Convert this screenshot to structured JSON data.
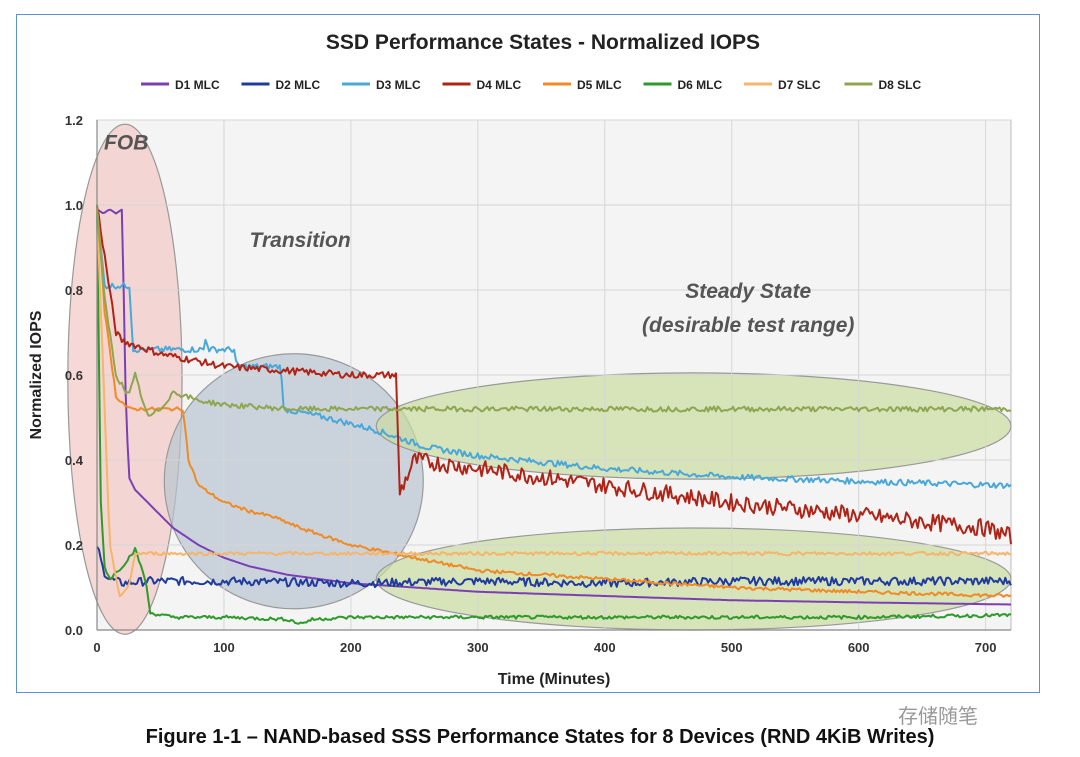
{
  "caption": "Figure 1-1 – NAND-based SSS Performance States for 8 Devices (RND 4KiB Writes)",
  "watermark": "存储随笔",
  "chart_data": {
    "type": "line",
    "title": "SSD Performance States - Normalized IOPS",
    "xlabel": "Time (Minutes)",
    "ylabel": "Normalized IOPS",
    "xlim": [
      0,
      720
    ],
    "ylim": [
      0,
      1.2
    ],
    "xticks": [
      0,
      100,
      200,
      300,
      400,
      500,
      600,
      700
    ],
    "yticks": [
      0.0,
      0.2,
      0.4,
      0.6,
      0.8,
      1.0,
      1.2
    ],
    "ytick_labels": [
      "0.0",
      "0.2",
      "0.4",
      "0.6",
      "0.8",
      "1.0",
      "1.2"
    ],
    "grid": true,
    "legend_position": "top",
    "annotations": [
      {
        "text": "FOB"
      },
      {
        "text": "Transition"
      },
      {
        "text": "Steady State"
      },
      {
        "text": "(desirable test range)"
      }
    ],
    "regions": [
      {
        "name": "fob-region",
        "cx": 22,
        "cy": 0.59,
        "rx": 45,
        "ry": 0.6,
        "color": "#f2c9c4"
      },
      {
        "name": "transition-region",
        "cx": 155,
        "cy": 0.35,
        "rx": 102,
        "ry": 0.3,
        "color": "#b8c4d0"
      },
      {
        "name": "steady-top-region",
        "cx": 470,
        "cy": 0.48,
        "rx": 250,
        "ry": 0.125,
        "color": "#cadba0"
      },
      {
        "name": "steady-bottom-region",
        "cx": 470,
        "cy": 0.12,
        "rx": 250,
        "ry": 0.12,
        "color": "#cadba0"
      }
    ],
    "series": [
      {
        "name": "D1 MLC",
        "color": "#7b3fb5",
        "points": [
          [
            0,
            0.99
          ],
          [
            5,
            0.98
          ],
          [
            10,
            0.99
          ],
          [
            15,
            0.98
          ],
          [
            20,
            0.99
          ],
          [
            22,
            0.6
          ],
          [
            25,
            0.36
          ],
          [
            30,
            0.33
          ],
          [
            40,
            0.3
          ],
          [
            60,
            0.24
          ],
          [
            80,
            0.2
          ],
          [
            100,
            0.17
          ],
          [
            120,
            0.15
          ],
          [
            150,
            0.13
          ],
          [
            200,
            0.11
          ],
          [
            250,
            0.1
          ],
          [
            300,
            0.09
          ],
          [
            400,
            0.08
          ],
          [
            500,
            0.07
          ],
          [
            600,
            0.065
          ],
          [
            720,
            0.06
          ]
        ]
      },
      {
        "name": "D2 MLC",
        "color": "#1f3b9e",
        "noise": 0.01,
        "points": [
          [
            0,
            0.2
          ],
          [
            5,
            0.14
          ],
          [
            10,
            0.12
          ],
          [
            20,
            0.11
          ],
          [
            40,
            0.115
          ],
          [
            100,
            0.115
          ],
          [
            200,
            0.11
          ],
          [
            300,
            0.115
          ],
          [
            400,
            0.11
          ],
          [
            500,
            0.115
          ],
          [
            600,
            0.115
          ],
          [
            720,
            0.115
          ]
        ]
      },
      {
        "name": "D3 MLC",
        "color": "#4aa8d8",
        "noise": 0.007,
        "points": [
          [
            0,
            1.0
          ],
          [
            3,
            0.9
          ],
          [
            6,
            0.81
          ],
          [
            26,
            0.81
          ],
          [
            28,
            0.66
          ],
          [
            40,
            0.66
          ],
          [
            84,
            0.66
          ],
          [
            86,
            0.69
          ],
          [
            88,
            0.66
          ],
          [
            108,
            0.66
          ],
          [
            110,
            0.62
          ],
          [
            145,
            0.62
          ],
          [
            147,
            0.52
          ],
          [
            180,
            0.5
          ],
          [
            220,
            0.47
          ],
          [
            260,
            0.43
          ],
          [
            300,
            0.41
          ],
          [
            400,
            0.38
          ],
          [
            500,
            0.36
          ],
          [
            600,
            0.35
          ],
          [
            720,
            0.34
          ]
        ]
      },
      {
        "name": "D4 MLC",
        "color": "#b02418",
        "noise": 0.008,
        "points": [
          [
            0,
            1.0
          ],
          [
            5,
            0.9
          ],
          [
            15,
            0.7
          ],
          [
            20,
            0.68
          ],
          [
            50,
            0.65
          ],
          [
            100,
            0.62
          ],
          [
            150,
            0.61
          ],
          [
            200,
            0.6
          ],
          [
            236,
            0.6
          ],
          [
            238,
            0.32
          ],
          [
            250,
            0.4
          ],
          [
            300,
            0.38
          ],
          [
            400,
            0.34
          ],
          [
            500,
            0.3
          ],
          [
            600,
            0.27
          ],
          [
            700,
            0.24
          ],
          [
            720,
            0.22
          ]
        ],
        "noise2": 0.02
      },
      {
        "name": "D5 MLC",
        "color": "#f08a24",
        "noise": 0.004,
        "points": [
          [
            0,
            0.99
          ],
          [
            3,
            0.9
          ],
          [
            6,
            0.75
          ],
          [
            15,
            0.55
          ],
          [
            25,
            0.52
          ],
          [
            50,
            0.52
          ],
          [
            68,
            0.52
          ],
          [
            72,
            0.4
          ],
          [
            80,
            0.34
          ],
          [
            100,
            0.3
          ],
          [
            120,
            0.28
          ],
          [
            140,
            0.265
          ],
          [
            160,
            0.24
          ],
          [
            200,
            0.2
          ],
          [
            250,
            0.17
          ],
          [
            300,
            0.14
          ],
          [
            400,
            0.12
          ],
          [
            500,
            0.1
          ],
          [
            600,
            0.09
          ],
          [
            720,
            0.08
          ]
        ]
      },
      {
        "name": "D6 MLC",
        "color": "#2e9a2a",
        "noise": 0.004,
        "points": [
          [
            0,
            1.0
          ],
          [
            3,
            0.3
          ],
          [
            6,
            0.15
          ],
          [
            10,
            0.12
          ],
          [
            20,
            0.15
          ],
          [
            30,
            0.19
          ],
          [
            38,
            0.12
          ],
          [
            42,
            0.04
          ],
          [
            60,
            0.03
          ],
          [
            100,
            0.03
          ],
          [
            150,
            0.025
          ],
          [
            160,
            0.015
          ],
          [
            170,
            0.025
          ],
          [
            200,
            0.03
          ],
          [
            300,
            0.03
          ],
          [
            400,
            0.03
          ],
          [
            500,
            0.03
          ],
          [
            600,
            0.03
          ],
          [
            720,
            0.035
          ]
        ]
      },
      {
        "name": "D7 SLC",
        "color": "#f5b56a",
        "noise": 0.004,
        "points": [
          [
            0,
            0.99
          ],
          [
            5,
            0.6
          ],
          [
            10,
            0.2
          ],
          [
            18,
            0.08
          ],
          [
            25,
            0.1
          ],
          [
            30,
            0.18
          ],
          [
            100,
            0.18
          ],
          [
            200,
            0.18
          ],
          [
            300,
            0.18
          ],
          [
            400,
            0.18
          ],
          [
            500,
            0.18
          ],
          [
            600,
            0.18
          ],
          [
            720,
            0.18
          ]
        ]
      },
      {
        "name": "D8 SLC",
        "color": "#8fa650",
        "noise": 0.006,
        "points": [
          [
            0,
            1.0
          ],
          [
            5,
            0.8
          ],
          [
            15,
            0.6
          ],
          [
            25,
            0.55
          ],
          [
            30,
            0.6
          ],
          [
            35,
            0.55
          ],
          [
            40,
            0.5
          ],
          [
            50,
            0.52
          ],
          [
            60,
            0.56
          ],
          [
            80,
            0.54
          ],
          [
            100,
            0.53
          ],
          [
            150,
            0.52
          ],
          [
            200,
            0.52
          ],
          [
            300,
            0.52
          ],
          [
            400,
            0.52
          ],
          [
            500,
            0.52
          ],
          [
            600,
            0.52
          ],
          [
            720,
            0.52
          ]
        ]
      }
    ]
  }
}
